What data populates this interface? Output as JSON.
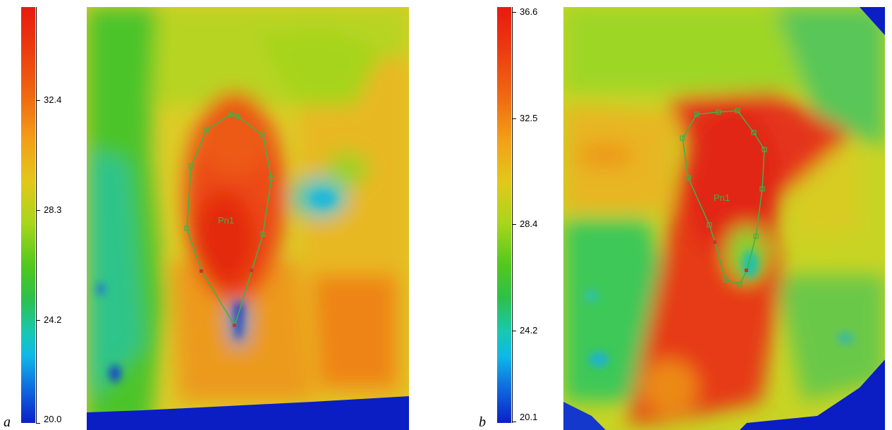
{
  "panels": [
    {
      "letter": "a",
      "scale": {
        "ticks": [
          "32.4",
          "28.3",
          "24.2",
          "20.0"
        ]
      },
      "roi_label": "Pn1"
    },
    {
      "letter": "b",
      "scale": {
        "ticks": [
          "36.6",
          "32.5",
          "28.4",
          "24.2",
          "20.1"
        ]
      },
      "roi_label": "Pn1"
    }
  ],
  "colors": {
    "hot": "#e81a10",
    "warm": "#f2a018",
    "mid": "#a8d61c",
    "cool": "#18c8b0",
    "cold": "#0a20c8",
    "roi_outline": "#39b54a",
    "roi_handle_red": "#c0392b"
  }
}
